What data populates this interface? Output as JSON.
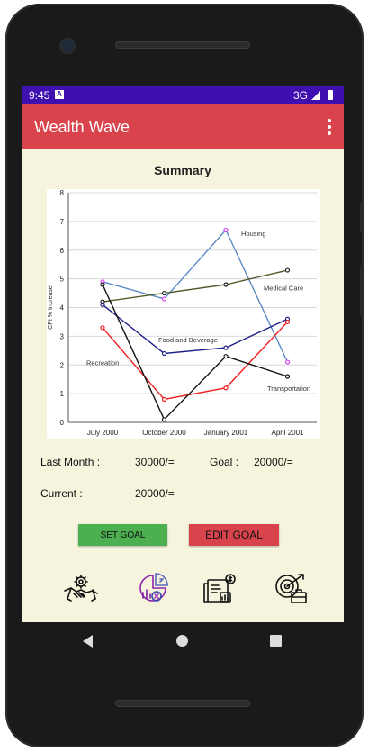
{
  "status_bar": {
    "time": "9:45",
    "network": "3G"
  },
  "app_bar": {
    "title": "Wealth Wave"
  },
  "summary_title": "Summary",
  "chart_data": {
    "type": "line",
    "categories": [
      "July 2000",
      "October 2000",
      "January 2001",
      "April 2001"
    ],
    "ylabel": "CPI % Increase",
    "ylim": [
      0,
      8
    ],
    "yticks": [
      "0",
      "1",
      "2",
      "3",
      "4",
      "5",
      "6",
      "7",
      "8"
    ],
    "grid": true,
    "series": [
      {
        "name": "Housing",
        "values": [
          4.9,
          4.3,
          6.7,
          2.1
        ],
        "color": "#5b8ac7",
        "marker": "#e040fb"
      },
      {
        "name": "Medical Care",
        "values": [
          4.2,
          4.5,
          4.8,
          5.3
        ],
        "color": "#4f5a2a",
        "marker": "#222222"
      },
      {
        "name": "Food and Beverage",
        "values": [
          4.1,
          2.4,
          2.6,
          3.6
        ],
        "color": "#1f1f8a",
        "marker": "#1f1f8a"
      },
      {
        "name": "Recreation",
        "values": [
          3.3,
          0.8,
          1.2,
          3.5
        ],
        "color": "#f02020",
        "marker": "#f02020"
      },
      {
        "name": "Transportation",
        "values": [
          4.8,
          0.1,
          2.3,
          1.6
        ],
        "color": "#111111",
        "marker": "#111111"
      }
    ]
  },
  "stats": {
    "last_month_label": "Last Month :",
    "last_month_value": "30000/=",
    "goal_label": "Goal :",
    "goal_value": "20000/=",
    "current_label": "Current :",
    "current_value": "20000/="
  },
  "buttons": {
    "set_goal": "SET GOAL",
    "edit_goal": "EDIT GOAL"
  },
  "bottom_icons": [
    "handshake-gear-icon",
    "analytics-pie-icon",
    "financial-report-icon",
    "investment-target-icon"
  ]
}
